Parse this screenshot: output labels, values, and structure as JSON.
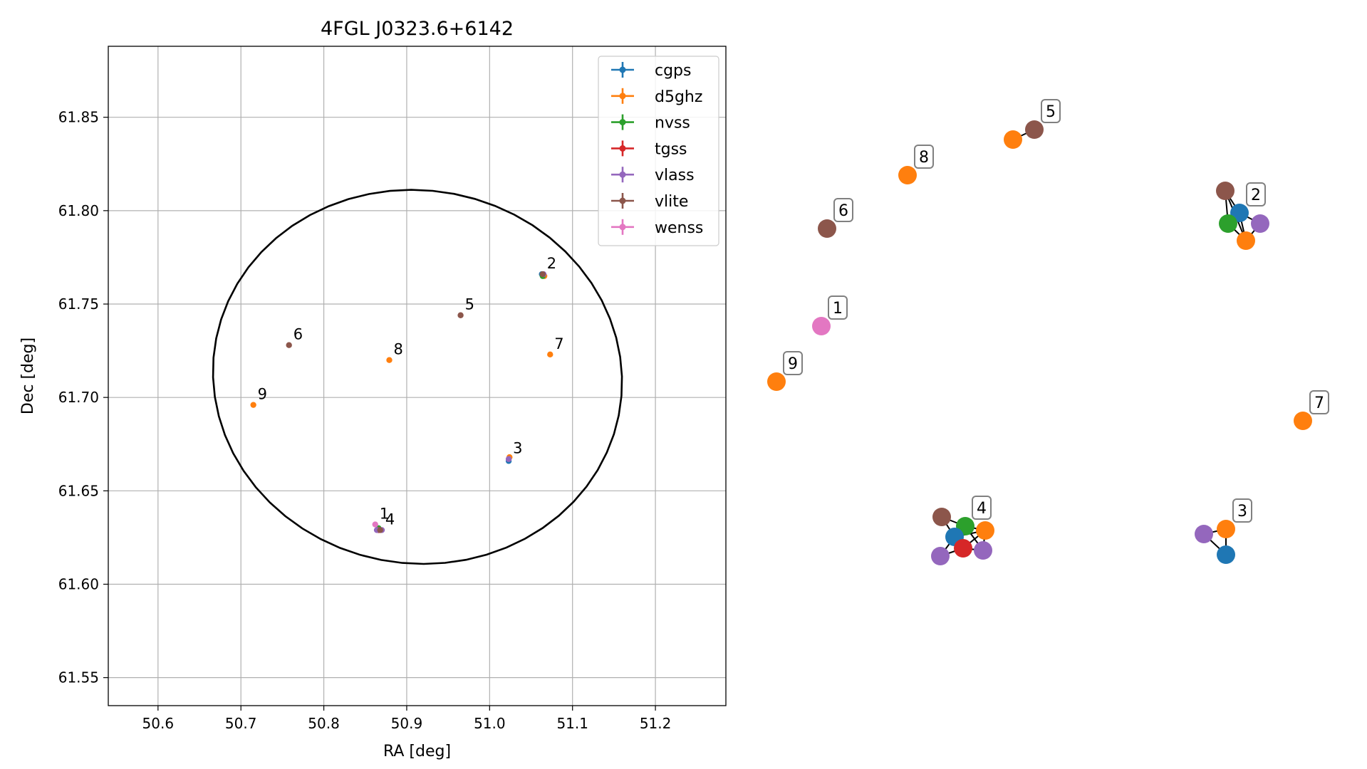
{
  "chart_data": [
    {
      "type": "scatter",
      "title": "4FGL J0323.6+6142",
      "xlabel": "RA [deg]",
      "ylabel": "Dec [deg]",
      "xlim": [
        50.54,
        51.285
      ],
      "ylim": [
        61.535,
        61.888
      ],
      "x_ticks": [
        50.6,
        50.7,
        50.8,
        50.9,
        51.0,
        51.1,
        51.2
      ],
      "x_tick_labels": [
        "50.6",
        "50.7",
        "50.8",
        "50.9",
        "51.0",
        "51.1",
        "51.2"
      ],
      "y_ticks": [
        61.55,
        61.6,
        61.65,
        61.7,
        61.75,
        61.8,
        61.85
      ],
      "y_tick_labels": [
        "61.55",
        "61.60",
        "61.65",
        "61.70",
        "61.75",
        "61.80",
        "61.85"
      ],
      "grid": true,
      "legend_position": "top-right",
      "ellipse": {
        "center_ra": 50.913,
        "center_dec": 61.711,
        "semi_ra": 0.247,
        "semi_dec": 0.1,
        "angle_deg": -5
      },
      "series": [
        {
          "name": "cgps",
          "color": "#1f77b4",
          "points": [
            [
              51.063,
              61.766
            ],
            [
              51.023,
              61.666
            ],
            [
              50.866,
              61.629
            ]
          ]
        },
        {
          "name": "d5ghz",
          "color": "#ff7f0e",
          "points": [
            [
              51.073,
              61.723
            ],
            [
              50.879,
              61.72
            ],
            [
              50.715,
              61.696
            ],
            [
              51.066,
              61.765
            ],
            [
              51.024,
              61.668
            ],
            [
              50.868,
              61.629
            ]
          ]
        },
        {
          "name": "nvss",
          "color": "#2ca02c",
          "points": [
            [
              51.064,
              61.765
            ],
            [
              50.866,
              61.63
            ]
          ]
        },
        {
          "name": "tgss",
          "color": "#d62728",
          "points": [
            [
              50.866,
              61.629
            ]
          ]
        },
        {
          "name": "vlass",
          "color": "#9467bd",
          "points": [
            [
              51.023,
              61.667
            ],
            [
              51.065,
              61.766
            ],
            [
              50.864,
              61.629
            ],
            [
              50.87,
              61.629
            ]
          ]
        },
        {
          "name": "vlite",
          "color": "#8c564b",
          "points": [
            [
              50.965,
              61.744
            ],
            [
              50.758,
              61.728
            ],
            [
              51.064,
              61.766
            ],
            [
              50.868,
              61.629
            ]
          ]
        },
        {
          "name": "wenss",
          "color": "#e377c2",
          "points": [
            [
              50.862,
              61.632
            ]
          ]
        }
      ],
      "labels": [
        {
          "text": "1",
          "ra": 50.862,
          "dec": 61.632
        },
        {
          "text": "2",
          "ra": 51.064,
          "dec": 61.766
        },
        {
          "text": "3",
          "ra": 51.023,
          "dec": 61.667
        },
        {
          "text": "4",
          "ra": 50.869,
          "dec": 61.629
        },
        {
          "text": "5",
          "ra": 50.965,
          "dec": 61.744
        },
        {
          "text": "6",
          "ra": 50.758,
          "dec": 61.728
        },
        {
          "text": "7",
          "ra": 51.073,
          "dec": 61.723
        },
        {
          "text": "8",
          "ra": 50.879,
          "dec": 61.72
        },
        {
          "text": "9",
          "ra": 50.715,
          "dec": 61.696
        }
      ]
    },
    {
      "type": "network",
      "nodes": [
        {
          "id": "n1",
          "color": "#e377c2"
        },
        {
          "id": "n9",
          "color": "#ff7f0e"
        },
        {
          "id": "n6",
          "color": "#8c564b"
        },
        {
          "id": "n8",
          "color": "#ff7f0e"
        },
        {
          "id": "n5a",
          "color": "#ff7f0e"
        },
        {
          "id": "n5b",
          "color": "#8c564b"
        },
        {
          "id": "n7",
          "color": "#ff7f0e"
        },
        {
          "id": "n2a",
          "color": "#8c564b"
        },
        {
          "id": "n2b",
          "color": "#1f77b4"
        },
        {
          "id": "n2c",
          "color": "#2ca02c"
        },
        {
          "id": "n2d",
          "color": "#9467bd"
        },
        {
          "id": "n2e",
          "color": "#ff7f0e"
        },
        {
          "id": "n3a",
          "color": "#9467bd"
        },
        {
          "id": "n3b",
          "color": "#ff7f0e"
        },
        {
          "id": "n3c",
          "color": "#1f77b4"
        },
        {
          "id": "n4a",
          "color": "#8c564b"
        },
        {
          "id": "n4b",
          "color": "#2ca02c"
        },
        {
          "id": "n4c",
          "color": "#ff7f0e"
        },
        {
          "id": "n4d",
          "color": "#1f77b4"
        },
        {
          "id": "n4e",
          "color": "#d62728"
        },
        {
          "id": "n4f",
          "color": "#9467bd"
        },
        {
          "id": "n4g",
          "color": "#9467bd"
        }
      ],
      "edges": [
        [
          "n5a",
          "n5b"
        ],
        [
          "n2a",
          "n2b"
        ],
        [
          "n2a",
          "n2c"
        ],
        [
          "n2a",
          "n2e"
        ],
        [
          "n2b",
          "n2c"
        ],
        [
          "n2b",
          "n2d"
        ],
        [
          "n2b",
          "n2e"
        ],
        [
          "n2c",
          "n2e"
        ],
        [
          "n2d",
          "n2e"
        ],
        [
          "n3a",
          "n3b"
        ],
        [
          "n3a",
          "n3c"
        ],
        [
          "n3b",
          "n3c"
        ],
        [
          "n4a",
          "n4d"
        ],
        [
          "n4a",
          "n4b"
        ],
        [
          "n4b",
          "n4d"
        ],
        [
          "n4b",
          "n4c"
        ],
        [
          "n4c",
          "n4e"
        ],
        [
          "n4c",
          "n4f"
        ],
        [
          "n4d",
          "n4e"
        ],
        [
          "n4d",
          "n4g"
        ],
        [
          "n4e",
          "n4f"
        ],
        [
          "n4e",
          "n4g"
        ],
        [
          "n4b",
          "n4f"
        ],
        [
          "n4d",
          "n4c"
        ]
      ],
      "group_labels": [
        {
          "text": "1",
          "node": "n1"
        },
        {
          "text": "2",
          "node": "n2b"
        },
        {
          "text": "3",
          "node": "n3b"
        },
        {
          "text": "4",
          "node": "n4b"
        },
        {
          "text": "5",
          "node": "n5b"
        },
        {
          "text": "6",
          "node": "n6"
        },
        {
          "text": "7",
          "node": "n7"
        },
        {
          "text": "8",
          "node": "n8"
        },
        {
          "text": "9",
          "node": "n9"
        }
      ]
    }
  ]
}
